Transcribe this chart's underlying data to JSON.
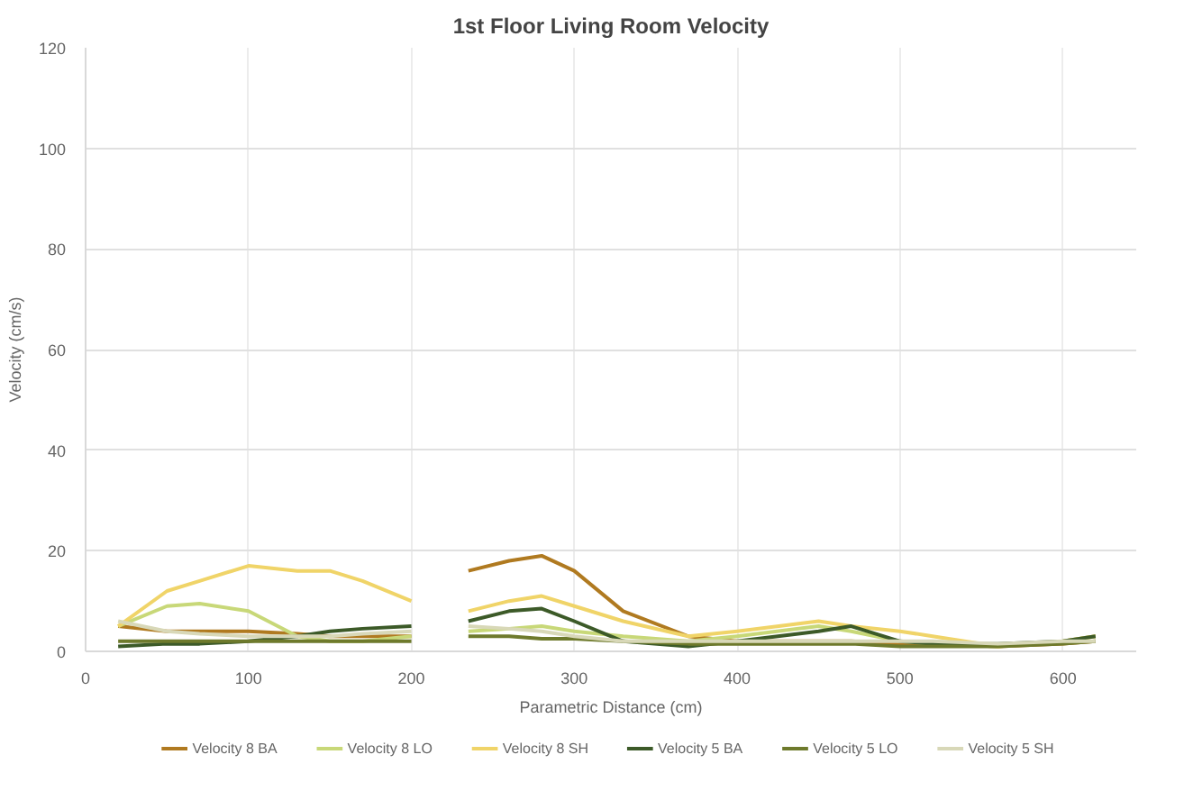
{
  "chart_data": {
    "type": "line",
    "title": "1st Floor Living Room Velocity",
    "xlabel": "Parametric Distance (cm)",
    "ylabel": "Velocity (cm/s)",
    "x": [
      20,
      50,
      70,
      100,
      130,
      150,
      170,
      200,
      215,
      235,
      260,
      280,
      300,
      330,
      370,
      400,
      450,
      470,
      500,
      520,
      560,
      600,
      620
    ],
    "series": [
      {
        "name": "Velocity 8 BA",
        "color": "#b07a20",
        "values": [
          5,
          4,
          4,
          4,
          3.5,
          3,
          3,
          3,
          null,
          16,
          18,
          19,
          16,
          8,
          3,
          2,
          2,
          2,
          1.5,
          1.5,
          1,
          1.5,
          2
        ]
      },
      {
        "name": "Velocity 8 LO",
        "color": "#c8d878",
        "values": [
          5,
          9,
          9.5,
          8,
          3,
          2,
          2,
          3,
          null,
          4,
          4.5,
          5,
          4,
          3,
          2,
          3,
          5,
          4,
          2,
          1.5,
          1,
          2,
          3
        ]
      },
      {
        "name": "Velocity 8 SH",
        "color": "#f0d468",
        "values": [
          5,
          12,
          14,
          17,
          16,
          16,
          14,
          10,
          null,
          8,
          10,
          11,
          9,
          6,
          3,
          4,
          6,
          5,
          4,
          3,
          1,
          2,
          3
        ]
      },
      {
        "name": "Velocity 5 BA",
        "color": "#3c5a28",
        "values": [
          1,
          1.5,
          1.5,
          2,
          3,
          4,
          4.5,
          5,
          null,
          6,
          8,
          8.5,
          6,
          2,
          1,
          2,
          4,
          5,
          2,
          1.5,
          1.5,
          2,
          3
        ]
      },
      {
        "name": "Velocity 5 LO",
        "color": "#6e7a2c",
        "values": [
          2,
          2,
          2,
          2,
          2,
          2,
          2,
          2,
          null,
          3,
          3,
          2.5,
          2.5,
          2,
          1.5,
          1.5,
          1.5,
          1.5,
          1,
          1,
          1,
          1.5,
          2
        ]
      },
      {
        "name": "Velocity 5 SH",
        "color": "#d8d8b8",
        "values": [
          6,
          4,
          3.5,
          3,
          3,
          3,
          3.5,
          4,
          null,
          5,
          4.5,
          4,
          3,
          2,
          2,
          2,
          2,
          2,
          2,
          2,
          1.5,
          2,
          2
        ]
      }
    ],
    "xlim": [
      0,
      645
    ],
    "ylim": [
      0,
      120
    ],
    "xticks": [
      0,
      100,
      200,
      300,
      400,
      500,
      600
    ],
    "yticks": [
      0,
      20,
      40,
      60,
      80,
      100,
      120
    ],
    "grid": true,
    "legend": "bottom",
    "marker": "none",
    "line_style": "solid"
  }
}
